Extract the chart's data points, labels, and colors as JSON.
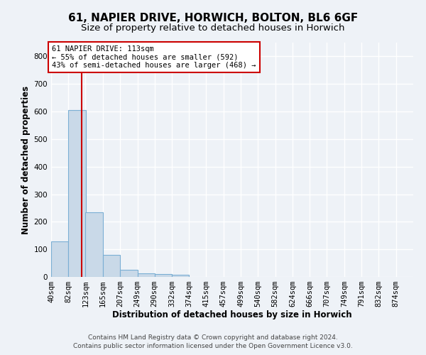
{
  "title": "61, NAPIER DRIVE, HORWICH, BOLTON, BL6 6GF",
  "subtitle": "Size of property relative to detached houses in Horwich",
  "xlabel": "Distribution of detached houses by size in Horwich",
  "ylabel": "Number of detached properties",
  "footer_line1": "Contains HM Land Registry data © Crown copyright and database right 2024.",
  "footer_line2": "Contains public sector information licensed under the Open Government Licence v3.0.",
  "bin_labels": [
    "40sqm",
    "82sqm",
    "123sqm",
    "165sqm",
    "207sqm",
    "249sqm",
    "290sqm",
    "332sqm",
    "374sqm",
    "415sqm",
    "457sqm",
    "499sqm",
    "540sqm",
    "582sqm",
    "624sqm",
    "666sqm",
    "707sqm",
    "749sqm",
    "791sqm",
    "832sqm",
    "874sqm"
  ],
  "bin_edges": [
    40,
    82,
    123,
    165,
    207,
    249,
    290,
    332,
    374,
    415,
    457,
    499,
    540,
    582,
    624,
    666,
    707,
    749,
    791,
    832,
    874
  ],
  "bar_heights": [
    130,
    605,
    235,
    80,
    25,
    12,
    10,
    8,
    0,
    0,
    0,
    0,
    0,
    0,
    0,
    0,
    0,
    0,
    0,
    0
  ],
  "bar_color": "#c9d9e8",
  "bar_edge_color": "#7bafd4",
  "property_size": 113,
  "vline_color": "#cc0000",
  "annotation_text_line1": "61 NAPIER DRIVE: 113sqm",
  "annotation_text_line2": "← 55% of detached houses are smaller (592)",
  "annotation_text_line3": "43% of semi-detached houses are larger (468) →",
  "annotation_box_color": "#cc0000",
  "annotation_bg_color": "#ffffff",
  "ylim": [
    0,
    850
  ],
  "xlim_min": 40,
  "xlim_max": 916,
  "bg_color": "#eef2f7",
  "plot_bg_color": "#eef2f7",
  "grid_color": "#ffffff",
  "title_fontsize": 11,
  "subtitle_fontsize": 9.5,
  "axis_label_fontsize": 8.5,
  "tick_fontsize": 7.5,
  "annotation_fontsize": 7.5,
  "footer_fontsize": 6.5
}
